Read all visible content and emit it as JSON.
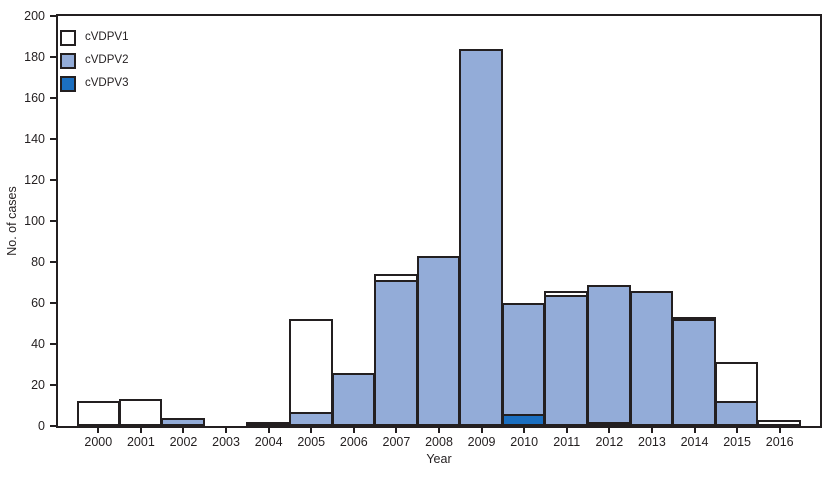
{
  "figure": {
    "background": "#ffffff",
    "frame_color": "#231f20",
    "text_color": "#231f20"
  },
  "y_axis": {
    "title": "No. of cases",
    "min": 0,
    "max": 200,
    "tick_step": 20,
    "ticks": [
      0,
      20,
      40,
      60,
      80,
      100,
      120,
      140,
      160,
      180,
      200
    ]
  },
  "x_axis": {
    "title": "Year"
  },
  "legend": {
    "items": [
      {
        "label": "cVDPV1",
        "color": "#ffffff"
      },
      {
        "label": "cVDPV2",
        "color": "#93acd8"
      },
      {
        "label": "cVDPV3",
        "color": "#1b6fc0"
      }
    ]
  },
  "chart_data": {
    "type": "bar",
    "stacked": true,
    "title": "",
    "xlabel": "Year",
    "ylabel": "No. of cases",
    "ylim": [
      0,
      200
    ],
    "grid": false,
    "legend_position": "top-left-inside",
    "categories": [
      "2000",
      "2001",
      "2002",
      "2003",
      "2004",
      "2005",
      "2006",
      "2007",
      "2008",
      "2009",
      "2010",
      "2011",
      "2012",
      "2013",
      "2014",
      "2015",
      "2016"
    ],
    "series": [
      {
        "name": "cVDPV3",
        "color": "#1b6fc0",
        "stack_order": "bottom",
        "values": [
          0,
          0,
          0,
          0,
          0,
          0,
          0,
          0,
          0,
          0,
          6,
          0,
          2,
          0,
          0,
          0,
          0
        ]
      },
      {
        "name": "cVDPV2",
        "color": "#93acd8",
        "stack_order": "middle",
        "values": [
          0,
          0,
          4,
          0,
          0,
          7,
          26,
          71,
          83,
          184,
          55,
          64,
          68,
          66,
          52,
          12,
          0
        ]
      },
      {
        "name": "cVDPV1",
        "color": "#ffffff",
        "stack_order": "top",
        "values": [
          12,
          13,
          0,
          0,
          2,
          46,
          0,
          4,
          0,
          0,
          0,
          3,
          0,
          0,
          2,
          20,
          3
        ]
      }
    ],
    "totals_by_year": [
      12,
      13,
      4,
      0,
      2,
      53,
      26,
      75,
      83,
      184,
      61,
      67,
      70,
      66,
      54,
      32,
      3
    ]
  }
}
